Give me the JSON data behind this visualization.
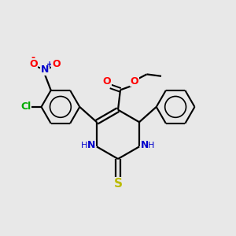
{
  "background_color": "#e8e8e8",
  "bond_color": "#000000",
  "atom_colors": {
    "N": "#0000cc",
    "O": "#ff0000",
    "S": "#bbbb00",
    "Cl": "#00aa00",
    "C": "#000000"
  },
  "figsize": [
    3.0,
    3.0
  ],
  "dpi": 100
}
